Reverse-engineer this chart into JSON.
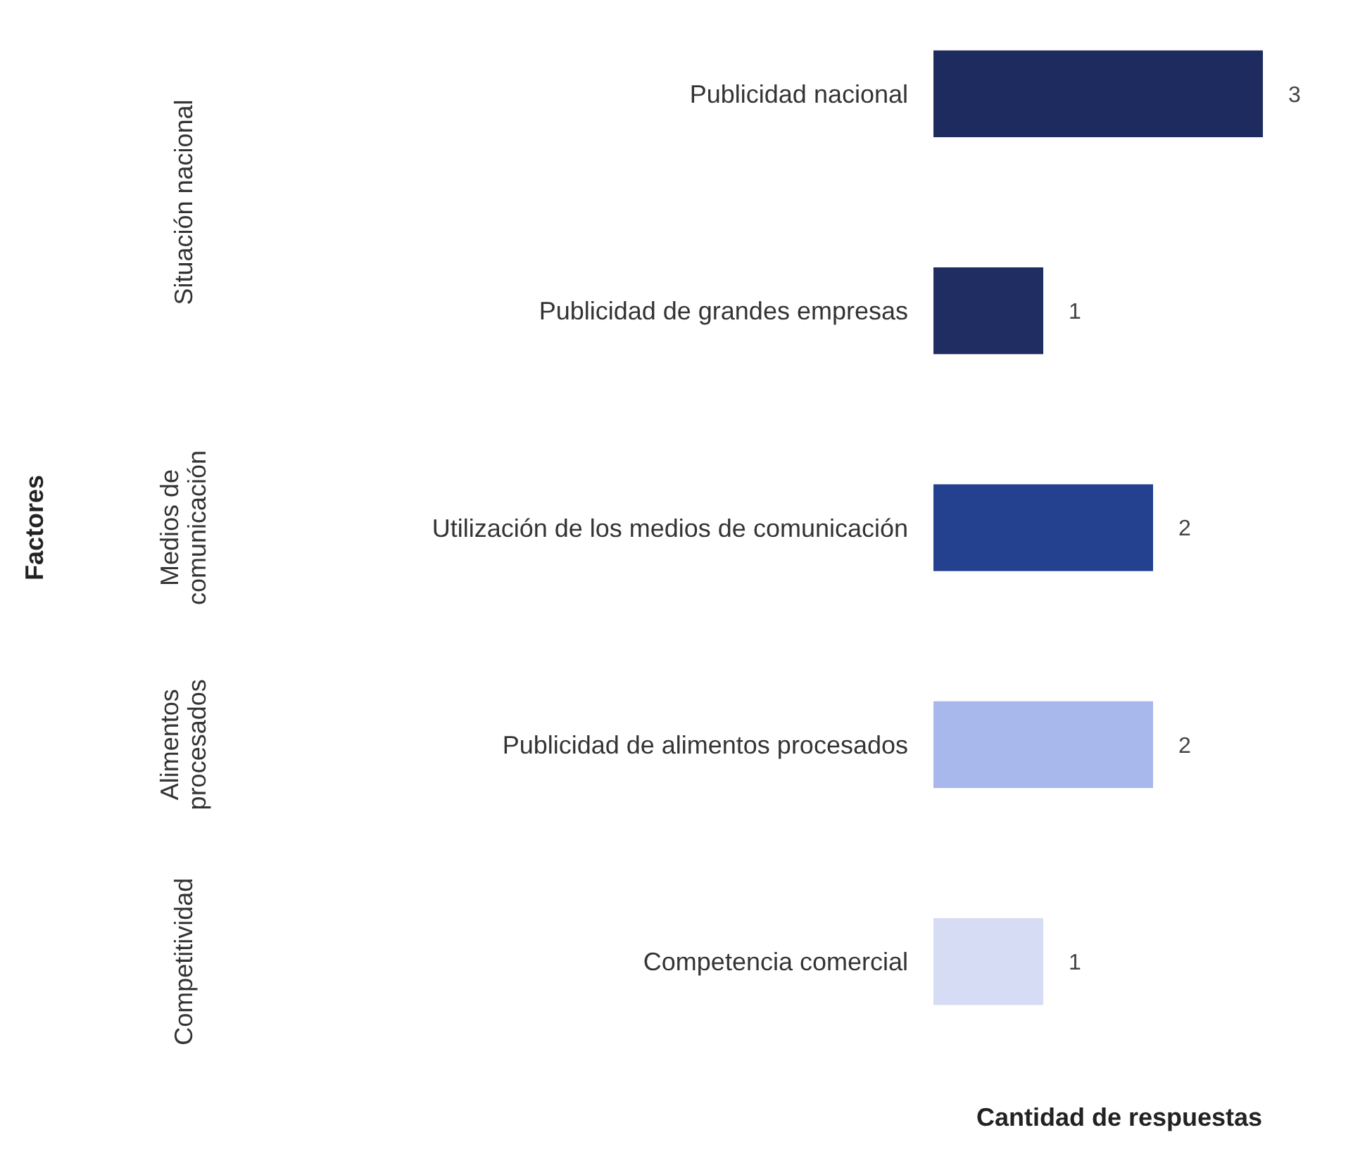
{
  "chart_data": {
    "type": "bar",
    "orientation": "horizontal",
    "xlabel": "Cantidad de respuestas",
    "categories": [
      "Publicidad nacional",
      "Publicidad de grandes empresas",
      "Utilización de los medios de comunicación",
      "Publicidad de alimentos procesados",
      "Competencia comercial"
    ],
    "values": [
      3,
      1,
      2,
      2,
      1
    ],
    "colors": [
      "#1e2b5e",
      "#1f2d62",
      "#23418f",
      "#a9b8ec",
      "#d5dcf4"
    ],
    "data_labels": true,
    "annotations": [
      "Factores",
      "Situación nacional",
      "Medios de\ncomunicación",
      "Alimentos\nprocesados",
      "Competitividad"
    ]
  }
}
